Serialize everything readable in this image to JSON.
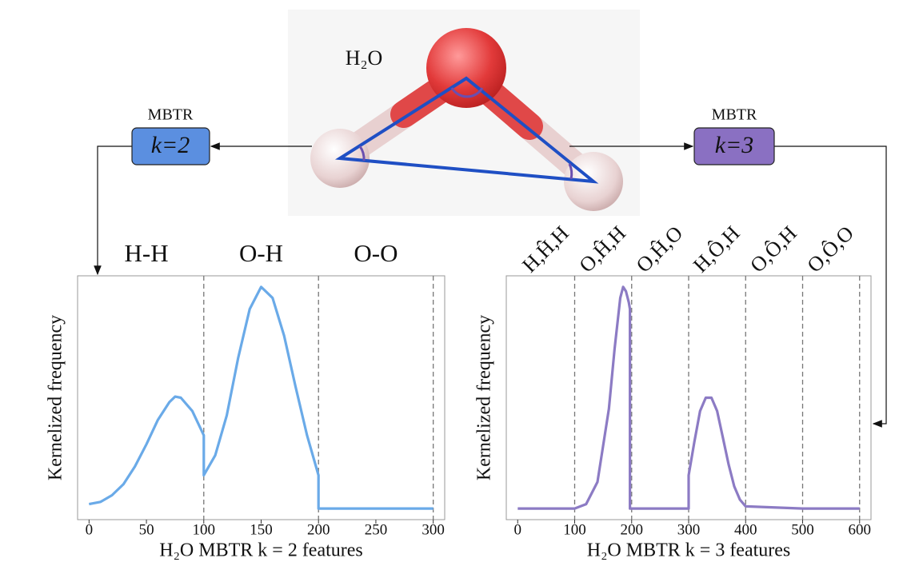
{
  "diagram": {
    "molecule_label": "H₂O",
    "boxes": [
      {
        "title": "MBTR",
        "label": "k=2",
        "color": "#5b8fe0"
      },
      {
        "title": "MBTR",
        "label": "k=3",
        "color": "#8a70c2"
      }
    ]
  },
  "chart_data": [
    {
      "type": "line",
      "x_label": "H₂O MBTR k = 2 features",
      "y_label": "Kernelized frequency",
      "color": "#6aaae8",
      "x": [
        0,
        10,
        20,
        30,
        40,
        50,
        60,
        70,
        75,
        80,
        90,
        100,
        100,
        110,
        120,
        130,
        140,
        150,
        160,
        170,
        180,
        190,
        200,
        200,
        250,
        300
      ],
      "values": [
        0.02,
        0.03,
        0.06,
        0.11,
        0.19,
        0.29,
        0.4,
        0.48,
        0.505,
        0.5,
        0.44,
        0.33,
        0.15,
        0.24,
        0.42,
        0.68,
        0.9,
        1.0,
        0.95,
        0.78,
        0.55,
        0.33,
        0.15,
        0,
        0,
        0
      ],
      "xlim": [
        -10,
        310
      ],
      "ylim": [
        -0.05,
        1.05
      ],
      "xticks": [
        0,
        50,
        100,
        150,
        200,
        250,
        300
      ],
      "dividers": [
        100,
        200,
        300
      ],
      "regions": [
        "H-H",
        "O-H",
        "O-O"
      ]
    },
    {
      "type": "line",
      "x_label": "H₂O MBTR k = 3 features",
      "y_label": "Kernelized frequency",
      "color": "#8c7bc4",
      "x": [
        0,
        100,
        120,
        140,
        160,
        170,
        180,
        185,
        190,
        195,
        197,
        197,
        200,
        300,
        300,
        310,
        320,
        330,
        340,
        350,
        360,
        370,
        380,
        390,
        400,
        500,
        600
      ],
      "values": [
        0,
        0,
        0.02,
        0.12,
        0.45,
        0.72,
        0.95,
        1.0,
        0.98,
        0.93,
        0.9,
        0,
        0,
        0,
        0.15,
        0.3,
        0.44,
        0.5,
        0.5,
        0.44,
        0.32,
        0.2,
        0.1,
        0.04,
        0.01,
        0,
        0
      ],
      "xlim": [
        -20,
        620
      ],
      "ylim": [
        -0.05,
        1.05
      ],
      "xticks": [
        0,
        100,
        200,
        300,
        400,
        500,
        600
      ],
      "dividers": [
        100,
        200,
        300,
        400,
        500,
        600
      ],
      "regions": [
        "H,Ĥ,H",
        "O,Ĥ,H",
        "O,Ĥ,O",
        "H,Ô,H",
        "O,Ô,H",
        "O,Ô,O"
      ]
    }
  ]
}
